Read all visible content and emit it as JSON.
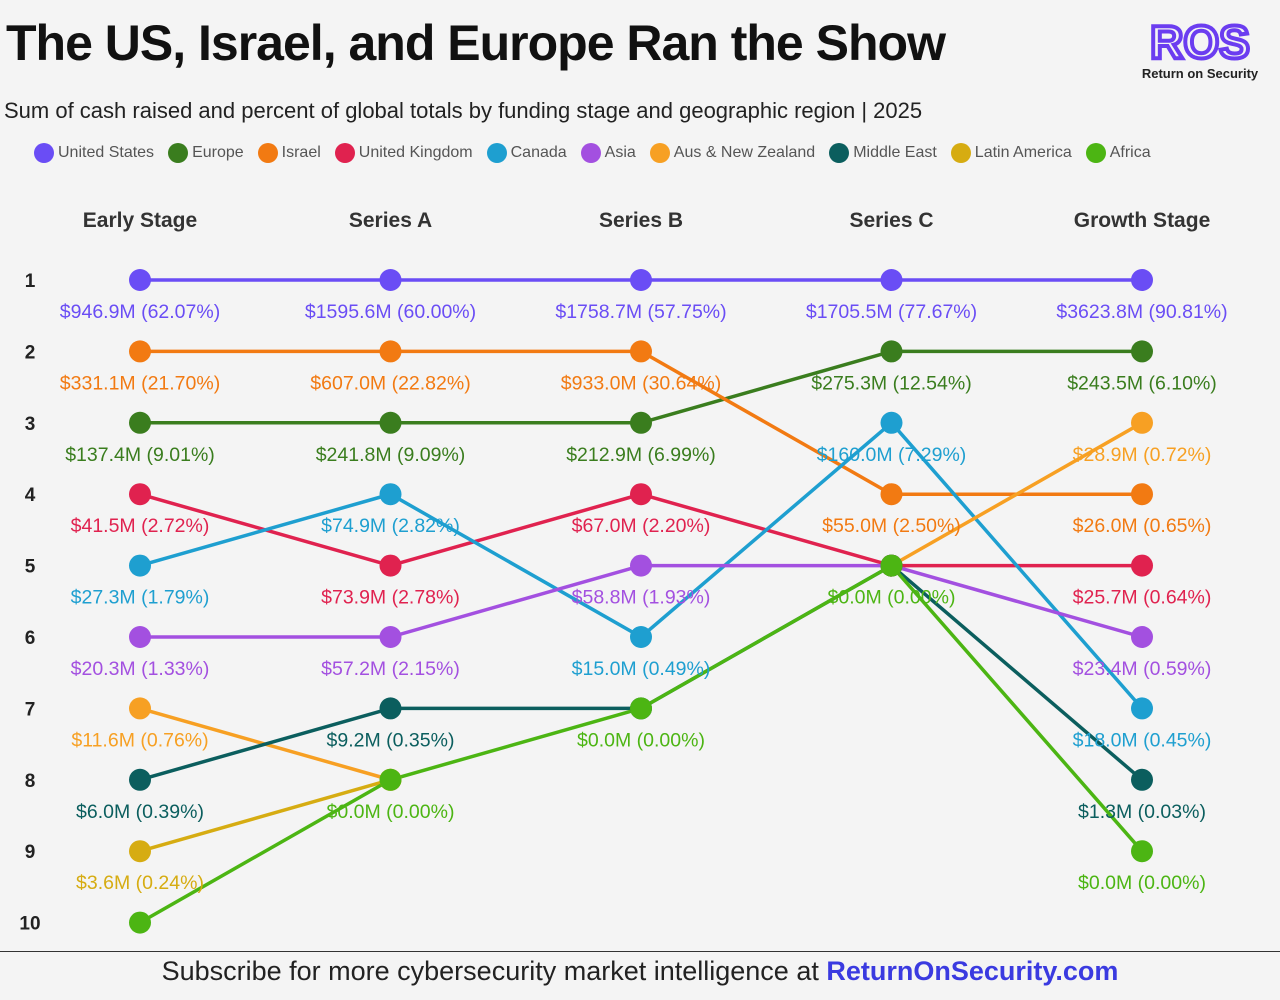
{
  "title": "The US, Israel, and Europe Ran the Show",
  "subtitle": "Sum of cash raised and percent of global totals by funding stage and geographic region | 2025",
  "logo": {
    "mark": "ROS",
    "tagline": "Return on Security",
    "color": "#6b3df0"
  },
  "footer": {
    "text": "Subscribe for more cybersecurity market intelligence at",
    "link": "ReturnOnSecurity.com"
  },
  "legend": [
    {
      "name": "United States",
      "color": "#6a4df5"
    },
    {
      "name": "Europe",
      "color": "#3a7d1e"
    },
    {
      "name": "Israel",
      "color": "#f27a12"
    },
    {
      "name": "United Kingdom",
      "color": "#e0224f"
    },
    {
      "name": "Canada",
      "color": "#1e9fd0"
    },
    {
      "name": "Asia",
      "color": "#a350e0"
    },
    {
      "name": "Aus & New Zealand",
      "color": "#f7a023"
    },
    {
      "name": "Middle East",
      "color": "#0b5e5e"
    },
    {
      "name": "Latin America",
      "color": "#d6ac12"
    },
    {
      "name": "Africa",
      "color": "#4cb513"
    }
  ],
  "chart_data": {
    "type": "bump",
    "title": "The US, Israel, and Europe Ran the Show",
    "categories": [
      "Early Stage",
      "Series A",
      "Series B",
      "Series C",
      "Growth Stage"
    ],
    "rank_labels": [
      "1",
      "2",
      "3",
      "4",
      "5",
      "6",
      "7",
      "8",
      "9",
      "10"
    ],
    "series": [
      {
        "name": "United States",
        "color": "#6a4df5",
        "ranks": [
          1,
          1,
          1,
          1,
          1
        ],
        "labels": [
          "$946.9M (62.07%)",
          "$1595.6M (60.00%)",
          "$1758.7M (57.75%)",
          "$1705.5M (77.67%)",
          "$3623.8M (90.81%)"
        ]
      },
      {
        "name": "Europe",
        "color": "#3a7d1e",
        "ranks": [
          3,
          3,
          3,
          2,
          2
        ],
        "labels": [
          "$137.4M (9.01%)",
          "$241.8M (9.09%)",
          "$212.9M (6.99%)",
          "$275.3M (12.54%)",
          "$243.5M (6.10%)"
        ]
      },
      {
        "name": "Israel",
        "color": "#f27a12",
        "ranks": [
          2,
          2,
          2,
          4,
          4
        ],
        "labels": [
          "$331.1M (21.70%)",
          "$607.0M (22.82%)",
          "$933.0M (30.64%)",
          "$55.0M (2.50%)",
          "$26.0M (0.65%)"
        ]
      },
      {
        "name": "United Kingdom",
        "color": "#e0224f",
        "ranks": [
          4,
          5,
          4,
          5,
          5
        ],
        "labels": [
          "$41.5M (2.72%)",
          "$73.9M (2.78%)",
          "$67.0M (2.20%)",
          null,
          "$25.7M (0.64%)"
        ]
      },
      {
        "name": "Canada",
        "color": "#1e9fd0",
        "ranks": [
          5,
          4,
          6,
          3,
          7
        ],
        "labels": [
          "$27.3M (1.79%)",
          "$74.9M (2.82%)",
          "$15.0M (0.49%)",
          "$160.0M (7.29%)",
          "$18.0M (0.45%)"
        ]
      },
      {
        "name": "Asia",
        "color": "#a350e0",
        "ranks": [
          6,
          6,
          5,
          5,
          6
        ],
        "labels": [
          "$20.3M (1.33%)",
          "$57.2M (2.15%)",
          "$58.8M (1.93%)",
          null,
          "$23.4M (0.59%)"
        ]
      },
      {
        "name": "Aus & New Zealand",
        "color": "#f7a023",
        "ranks": [
          7,
          8,
          null,
          5,
          3
        ],
        "labels": [
          "$11.6M (0.76%)",
          null,
          null,
          null,
          "$28.9M (0.72%)"
        ]
      },
      {
        "name": "Middle East",
        "color": "#0b5e5e",
        "ranks": [
          8,
          7,
          7,
          5,
          8
        ],
        "labels": [
          "$6.0M (0.39%)",
          "$9.2M (0.35%)",
          null,
          null,
          "$1.3M (0.03%)"
        ]
      },
      {
        "name": "Latin America",
        "color": "#d6ac12",
        "ranks": [
          9,
          8,
          null,
          null,
          null
        ],
        "labels": [
          "$3.6M (0.24%)",
          null,
          null,
          null,
          null
        ]
      },
      {
        "name": "Africa",
        "color": "#4cb513",
        "ranks": [
          10,
          8,
          7,
          5,
          9
        ],
        "labels": [
          null,
          "$0.0M (0.00%)",
          "$0.0M (0.00%)",
          "$0.0M (0.00%)",
          "$0.0M (0.00%)"
        ]
      }
    ]
  }
}
